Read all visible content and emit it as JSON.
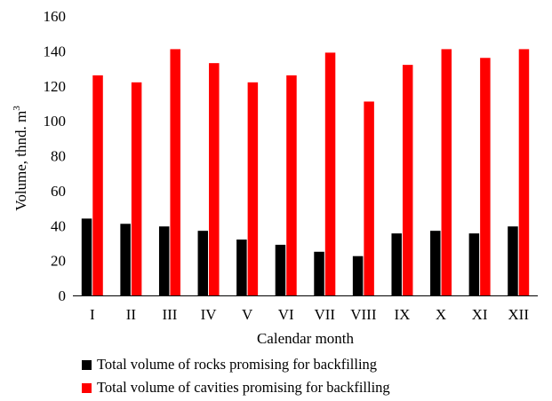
{
  "chart_data": {
    "type": "bar",
    "xlabel": "Calendar month",
    "ylabel_main": "Volume, thnd. m",
    "ylabel_sup": "3",
    "ylim": [
      0,
      160
    ],
    "yticks": [
      0,
      20,
      40,
      60,
      80,
      100,
      120,
      140,
      160
    ],
    "grid": false,
    "legend_position": "bottom",
    "categories": [
      "I",
      "II",
      "III",
      "IV",
      "V",
      "VI",
      "VII",
      "VIII",
      "IX",
      "X",
      "XI",
      "XII"
    ],
    "series": [
      {
        "name": "Total volume of rocks promising for backfilling",
        "color": "#000000",
        "values": [
          44,
          41,
          39.5,
          37,
          32,
          29,
          25,
          22.5,
          35.5,
          37,
          35.5,
          39.5
        ]
      },
      {
        "name": "Total volume of cavities promising for backfilling",
        "color": "#ff0000",
        "values": [
          126,
          122,
          141,
          133,
          122,
          126,
          139,
          111,
          132,
          141,
          136,
          141
        ]
      }
    ]
  }
}
